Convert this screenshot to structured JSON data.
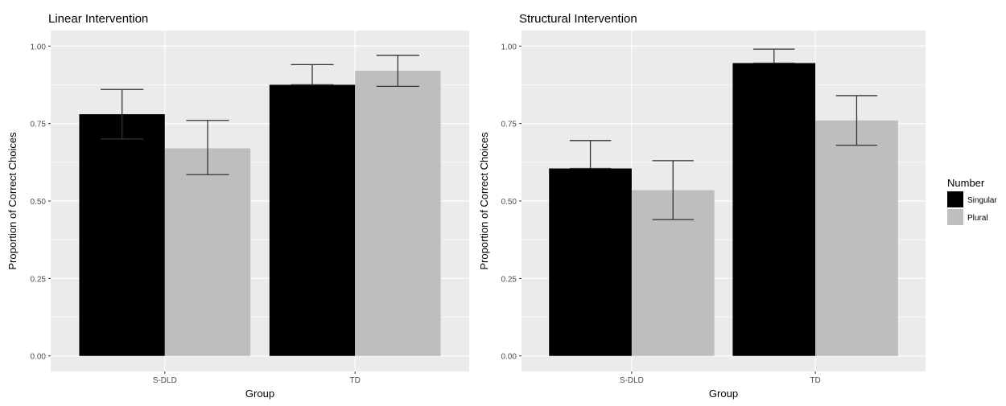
{
  "chart_data": [
    {
      "type": "bar",
      "title": "Linear Intervention",
      "xlabel": "Group",
      "ylabel": "Proportion of Correct Choices",
      "categories": [
        "S-DLD",
        "TD"
      ],
      "ylim": [
        0,
        1.0
      ],
      "yticks": [
        "0.00",
        "0.25",
        "0.50",
        "0.75",
        "1.00"
      ],
      "grid": true,
      "series": [
        {
          "name": "Singular",
          "values": [
            0.78,
            0.875
          ],
          "err_low": [
            0.7,
            0.875
          ],
          "err_high": [
            0.86,
            0.94
          ]
        },
        {
          "name": "Plural",
          "values": [
            0.67,
            0.92
          ],
          "err_low": [
            0.585,
            0.87
          ],
          "err_high": [
            0.76,
            0.97
          ]
        }
      ]
    },
    {
      "type": "bar",
      "title": "Structural Intervention",
      "xlabel": "Group",
      "ylabel": "Proportion of Correct Choices",
      "categories": [
        "S-DLD",
        "TD"
      ],
      "ylim": [
        0,
        1.0
      ],
      "yticks": [
        "0.00",
        "0.25",
        "0.50",
        "0.75",
        "1.00"
      ],
      "grid": true,
      "series": [
        {
          "name": "Singular",
          "values": [
            0.605,
            0.945
          ],
          "err_low": [
            0.605,
            0.945
          ],
          "err_high": [
            0.695,
            0.99
          ]
        },
        {
          "name": "Plural",
          "values": [
            0.535,
            0.76
          ],
          "err_low": [
            0.44,
            0.68
          ],
          "err_high": [
            0.63,
            0.84
          ]
        }
      ]
    }
  ],
  "legend": {
    "title": "Number",
    "placement": "right",
    "items": [
      {
        "label": "Singular",
        "color": "#000000"
      },
      {
        "label": "Plural",
        "color": "#bebebe"
      }
    ]
  },
  "colors": {
    "panel_bg": "#ebebeb",
    "grid": "#ffffff",
    "errorbar": "#333333"
  }
}
